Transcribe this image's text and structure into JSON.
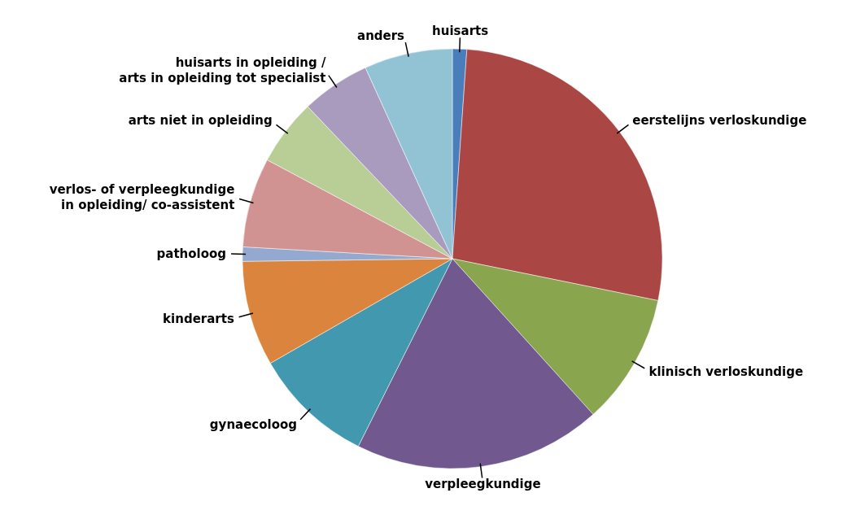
{
  "chart_data": {
    "type": "pie",
    "categories": [
      "huisarts",
      "eerstelijns verloskundige",
      "klinisch verloskundige",
      "verpleegkundige",
      "gynaecoloog",
      "kinderarts",
      "patholoog",
      "verlos- of verpleegkundige\nin opleiding/ co-assistent",
      "arts niet in opleiding",
      "huisarts in opleiding /\narts in opleiding tot specialist",
      "anders"
    ],
    "values": [
      1.1,
      27.1,
      10.1,
      19.1,
      9.3,
      8.1,
      1.1,
      6.9,
      5.1,
      5.3,
      6.8
    ],
    "colors": [
      "#4a7ebb",
      "#aa4644",
      "#89a54e",
      "#71588f",
      "#4198af",
      "#db843d",
      "#93a9cf",
      "#d19392",
      "#b9cd96",
      "#a99bbd",
      "#92c3d4"
    ]
  }
}
